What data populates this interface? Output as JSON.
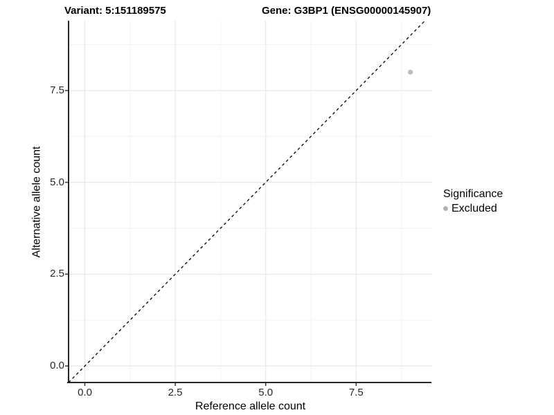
{
  "colors": {
    "background": "#ffffff",
    "axis_line": "#262626",
    "tick_mark": "#333333",
    "grid_major": "#e7e7e7",
    "grid_minor": "#f2f2f2",
    "identity_line": "#000000",
    "point_fill": "#bdbdbd",
    "legend_key_fill": "#b0b0b0",
    "text": "#000000"
  },
  "chart_data": {
    "type": "scatter",
    "title_left": "Variant: 5:151189575",
    "title_right": "Gene: G3BP1 (ENSG00000145907)",
    "xlabel": "Reference allele count",
    "ylabel": "Alternative allele count",
    "xlim": [
      -0.45,
      9.6
    ],
    "ylim": [
      -0.45,
      9.4
    ],
    "x_ticks": [
      0,
      2.5,
      5,
      7.5
    ],
    "y_ticks": [
      0,
      2.5,
      5,
      7.5
    ],
    "x_tick_labels": [
      "0.0",
      "2.5",
      "5.0",
      "7.5"
    ],
    "y_tick_labels": [
      "7.5",
      "5.0",
      "2.5",
      "0.0"
    ],
    "minor_step": 1.25,
    "grid": "major+minor",
    "reference_line": {
      "type": "identity",
      "slope": 1,
      "intercept": 0,
      "style": "dashed"
    },
    "points": [
      {
        "x": 9,
        "y": 8,
        "significance": "Excluded"
      }
    ],
    "legend": {
      "title": "Significance",
      "position": "right",
      "entries": [
        {
          "label": "Excluded"
        }
      ]
    }
  }
}
